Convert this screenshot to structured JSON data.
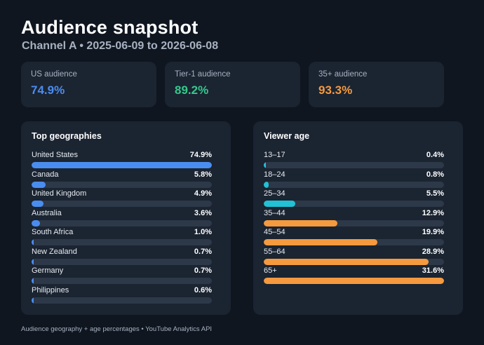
{
  "header": {
    "title": "Audience snapshot",
    "subtitle": "Channel A  •  2025-06-09 to 2026-06-08"
  },
  "kpis": [
    {
      "label": "US audience",
      "value": "74.9%",
      "color": "#4a8df0"
    },
    {
      "label": "Tier-1 audience",
      "value": "89.2%",
      "color": "#34c98b"
    },
    {
      "label": "35+ audience",
      "value": "93.3%",
      "color": "#f59a3e"
    }
  ],
  "chart_data": [
    {
      "type": "bar",
      "orientation": "horizontal",
      "title": "Top geographies",
      "categories": [
        "United States",
        "Canada",
        "United Kingdom",
        "Australia",
        "South Africa",
        "New Zealand",
        "Germany",
        "Philippines"
      ],
      "values": [
        74.9,
        5.8,
        4.9,
        3.6,
        1.0,
        0.7,
        0.7,
        0.6
      ],
      "value_labels": [
        "74.9%",
        "5.8%",
        "4.9%",
        "3.6%",
        "1.0%",
        "0.7%",
        "0.7%",
        "0.6%"
      ],
      "scale_max": 74.9,
      "colors": [
        "#4a8df0"
      ]
    },
    {
      "type": "bar",
      "orientation": "horizontal",
      "title": "Viewer age",
      "categories": [
        "13–17",
        "18–24",
        "25–34",
        "35–44",
        "45–54",
        "55–64",
        "65+"
      ],
      "values": [
        0.4,
        0.8,
        5.5,
        12.9,
        19.9,
        28.9,
        31.6
      ],
      "value_labels": [
        "0.4%",
        "0.8%",
        "5.5%",
        "12.9%",
        "19.9%",
        "28.9%",
        "31.6%"
      ],
      "scale_max": 31.6,
      "colors": [
        "#22c1d6",
        "#22c1d6",
        "#22c1d6",
        "#f59a3e",
        "#f59a3e",
        "#f59a3e",
        "#f59a3e"
      ]
    }
  ],
  "footer": {
    "text": "Audience geography + age percentages • YouTube Analytics API"
  },
  "theme": {
    "background": "#0f1620",
    "card": "#1b2431",
    "track": "#2d3849"
  }
}
